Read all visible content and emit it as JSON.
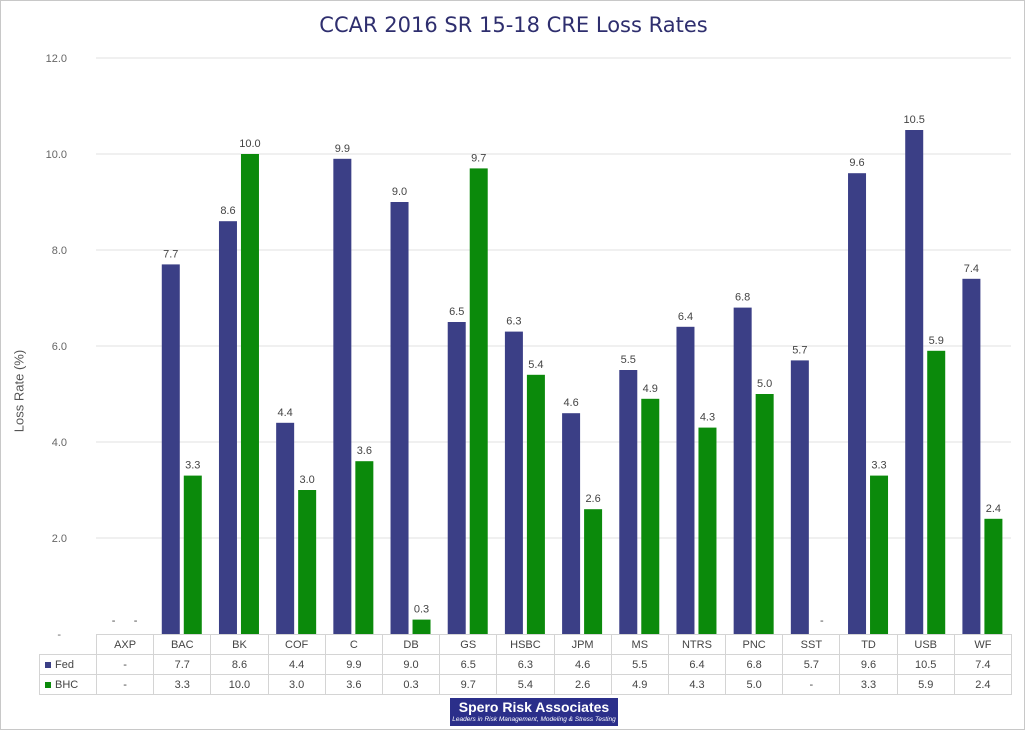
{
  "chart_data": {
    "type": "bar",
    "title": "CCAR 2016 SR 15-18 CRE Loss Rates",
    "xlabel": "",
    "ylabel": "Loss Rate (%)",
    "ylim": [
      0,
      12
    ],
    "yticks": [
      "",
      "2.0",
      "4.0",
      "6.0",
      "8.0",
      "10.0",
      "12.0"
    ],
    "zero_tick": "-",
    "grid": true,
    "legend": "table-bottom",
    "categories": [
      "AXP",
      "BAC",
      "BK",
      "COF",
      "C",
      "DB",
      "GS",
      "HSBC",
      "JPM",
      "MS",
      "NTRS",
      "PNC",
      "SST",
      "TD",
      "USB",
      "WF"
    ],
    "series": [
      {
        "name": "Fed",
        "color": "#3b3f86",
        "values": [
          null,
          7.7,
          8.6,
          4.4,
          9.9,
          9.0,
          6.5,
          6.3,
          4.6,
          5.5,
          6.4,
          6.8,
          5.7,
          9.6,
          10.5,
          7.4
        ],
        "labels": [
          "-",
          "7.7",
          "8.6",
          "4.4",
          "9.9",
          "9.0",
          "6.5",
          "6.3",
          "4.6",
          "5.5",
          "6.4",
          "6.8",
          "5.7",
          "9.6",
          "10.5",
          "7.4"
        ]
      },
      {
        "name": "BHC",
        "color": "#0b8a0b",
        "values": [
          null,
          3.3,
          10.0,
          3.0,
          3.6,
          0.3,
          9.7,
          5.4,
          2.6,
          4.9,
          4.3,
          5.0,
          null,
          3.3,
          5.9,
          2.4
        ],
        "labels": [
          "-",
          "3.3",
          "10.0",
          "3.0",
          "3.6",
          "0.3",
          "9.7",
          "5.4",
          "2.6",
          "4.9",
          "4.3",
          "5.0",
          "-",
          "3.3",
          "5.9",
          "2.4"
        ]
      }
    ]
  },
  "brand": {
    "name": "Spero Risk Associates",
    "tagline": "Leaders in Risk Management, Modeling & Stress Testing",
    "color": "#2b2f8a"
  }
}
